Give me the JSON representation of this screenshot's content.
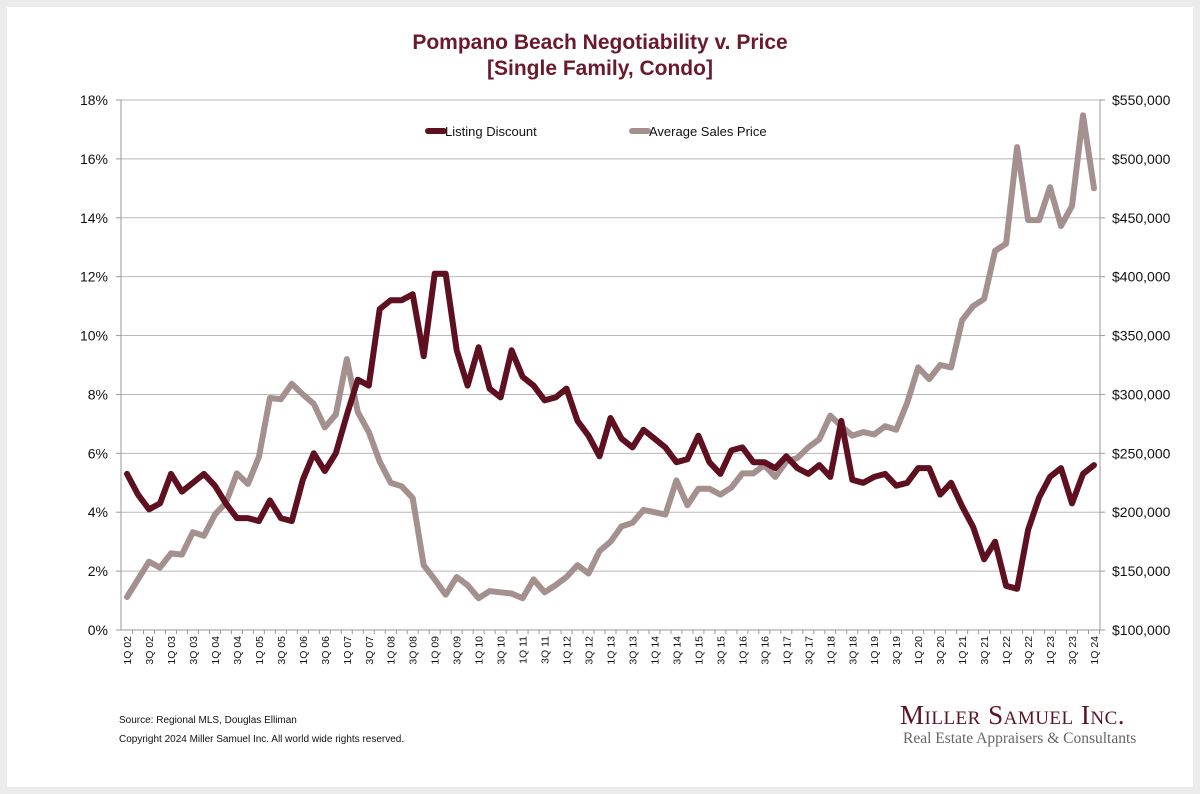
{
  "chart_data": {
    "type": "line",
    "title": "Pompano Beach Negotiability v. Price",
    "subtitle": "[Single Family, Condo]",
    "xlabel": "",
    "ylabel_left": "",
    "ylabel_right": "",
    "grid": true,
    "legend_position": "top-center",
    "y_left": {
      "min": 0,
      "max": 18,
      "step": 2,
      "ticks": [
        "0%",
        "2%",
        "4%",
        "6%",
        "8%",
        "10%",
        "12%",
        "14%",
        "16%",
        "18%"
      ]
    },
    "y_right": {
      "min": 100000,
      "max": 550000,
      "step": 50000,
      "ticks": [
        "$100,000",
        "$150,000",
        "$200,000",
        "$250,000",
        "$300,000",
        "$350,000",
        "$400,000",
        "$450,000",
        "$500,000",
        "$550,000"
      ]
    },
    "x_tick_labels": [
      "1Q 02",
      "3Q 02",
      "1Q 03",
      "3Q 03",
      "1Q 04",
      "3Q 04",
      "1Q 05",
      "3Q 05",
      "1Q 06",
      "3Q 06",
      "1Q 07",
      "3Q 07",
      "1Q 08",
      "3Q 08",
      "1Q 09",
      "3Q 09",
      "1Q 10",
      "3Q 10",
      "1Q 11",
      "3Q 11",
      "1Q 12",
      "3Q 12",
      "1Q 13",
      "3Q 13",
      "1Q 14",
      "3Q 14",
      "1Q 15",
      "3Q 15",
      "1Q 16",
      "3Q 16",
      "1Q 17",
      "3Q 17",
      "1Q 18",
      "3Q 18",
      "1Q 19",
      "3Q 19",
      "1Q 20",
      "3Q 20",
      "1Q 21",
      "3Q 21",
      "1Q 22",
      "3Q 22",
      "1Q 23",
      "3Q 23",
      "1Q 24"
    ],
    "quarters_count": 89,
    "series": [
      {
        "name": "Listing Discount",
        "axis": "left",
        "unit": "%",
        "color": "#5e1020",
        "values": [
          5.3,
          4.6,
          4.1,
          4.3,
          5.3,
          4.7,
          5.0,
          5.3,
          4.9,
          4.3,
          3.8,
          3.8,
          3.7,
          4.4,
          3.8,
          3.7,
          5.1,
          6.0,
          5.4,
          6.0,
          7.3,
          8.5,
          8.3,
          10.9,
          11.2,
          11.2,
          11.4,
          9.3,
          12.1,
          12.1,
          9.5,
          8.3,
          9.6,
          8.2,
          7.9,
          9.5,
          8.6,
          8.3,
          7.8,
          7.9,
          8.2,
          7.1,
          6.6,
          5.9,
          7.2,
          6.5,
          6.2,
          6.8,
          6.5,
          6.2,
          5.7,
          5.8,
          6.6,
          5.7,
          5.3,
          6.1,
          6.2,
          5.7,
          5.7,
          5.5,
          5.9,
          5.5,
          5.3,
          5.6,
          5.2,
          7.1,
          5.1,
          5.0,
          5.2,
          5.3,
          4.9,
          5.0,
          5.5,
          5.5,
          4.6,
          5.0,
          4.2,
          3.5,
          2.4,
          3.0,
          1.5,
          1.4,
          3.4,
          4.5,
          5.2,
          5.5,
          4.3,
          5.3,
          5.6
        ]
      },
      {
        "name": "Average Sales Price",
        "axis": "right",
        "unit": "$",
        "color": "#a59090",
        "values": [
          128000,
          143000,
          158000,
          153000,
          165000,
          164000,
          183000,
          180000,
          198000,
          208000,
          233000,
          224000,
          247000,
          297000,
          296000,
          309000,
          300000,
          292000,
          272000,
          283000,
          330000,
          285000,
          268000,
          243000,
          225000,
          222000,
          212000,
          155000,
          143000,
          130000,
          145000,
          138000,
          127000,
          133000,
          132000,
          131000,
          127000,
          143000,
          132000,
          138000,
          145000,
          155000,
          148000,
          167000,
          175000,
          188000,
          191000,
          202000,
          200000,
          198000,
          227000,
          206000,
          220000,
          220000,
          215000,
          221000,
          233000,
          233000,
          240000,
          230000,
          243000,
          246000,
          255000,
          262000,
          282000,
          273000,
          265000,
          268000,
          266000,
          273000,
          270000,
          293000,
          323000,
          313000,
          325000,
          323000,
          363000,
          375000,
          381000,
          422000,
          428000,
          510000,
          448000,
          448000,
          476000,
          443000,
          460000,
          537000,
          475000
        ]
      }
    ]
  },
  "footer": {
    "source": "Source: Regional MLS, Douglas Elliman",
    "copyright": "Copyright 2024 Miller Samuel Inc.  All world wide rights reserved."
  },
  "logo": {
    "name": "Miller Samuel Inc.",
    "tagline": "Real Estate Appraisers & Consultants"
  }
}
